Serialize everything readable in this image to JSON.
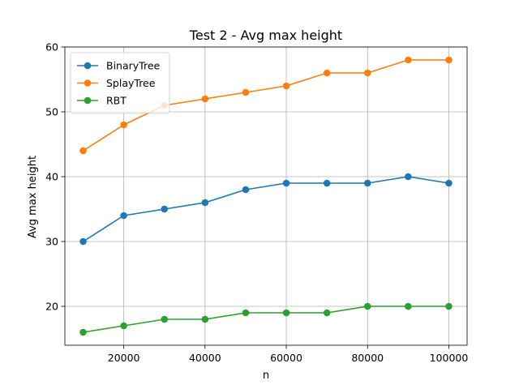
{
  "chart_data": {
    "type": "line",
    "title": "Test 2 - Avg max height",
    "xlabel": "n",
    "ylabel": "Avg max height",
    "x": [
      10000,
      20000,
      30000,
      40000,
      50000,
      60000,
      70000,
      80000,
      90000,
      100000
    ],
    "series": [
      {
        "name": "BinaryTree",
        "color": "#1f77b4",
        "values": [
          30,
          34,
          35,
          36,
          38,
          39,
          39,
          39,
          40,
          39
        ]
      },
      {
        "name": "SplayTree",
        "color": "#ff7f0e",
        "values": [
          44,
          48,
          51,
          52,
          53,
          54,
          56,
          56,
          58,
          58
        ]
      },
      {
        "name": "RBT",
        "color": "#2ca02c",
        "values": [
          16,
          17,
          18,
          18,
          19,
          19,
          19,
          20,
          20,
          20
        ]
      }
    ],
    "xlim": [
      5500,
      104500
    ],
    "ylim": [
      14,
      60
    ],
    "xticks": [
      20000,
      40000,
      60000,
      80000,
      100000
    ],
    "xtick_labels": [
      "20000",
      "40000",
      "60000",
      "80000",
      "100000"
    ],
    "yticks": [
      20,
      30,
      40,
      50,
      60
    ],
    "ytick_labels": [
      "20",
      "30",
      "40",
      "50",
      "60"
    ],
    "grid": true,
    "legend_position": "top-left"
  }
}
